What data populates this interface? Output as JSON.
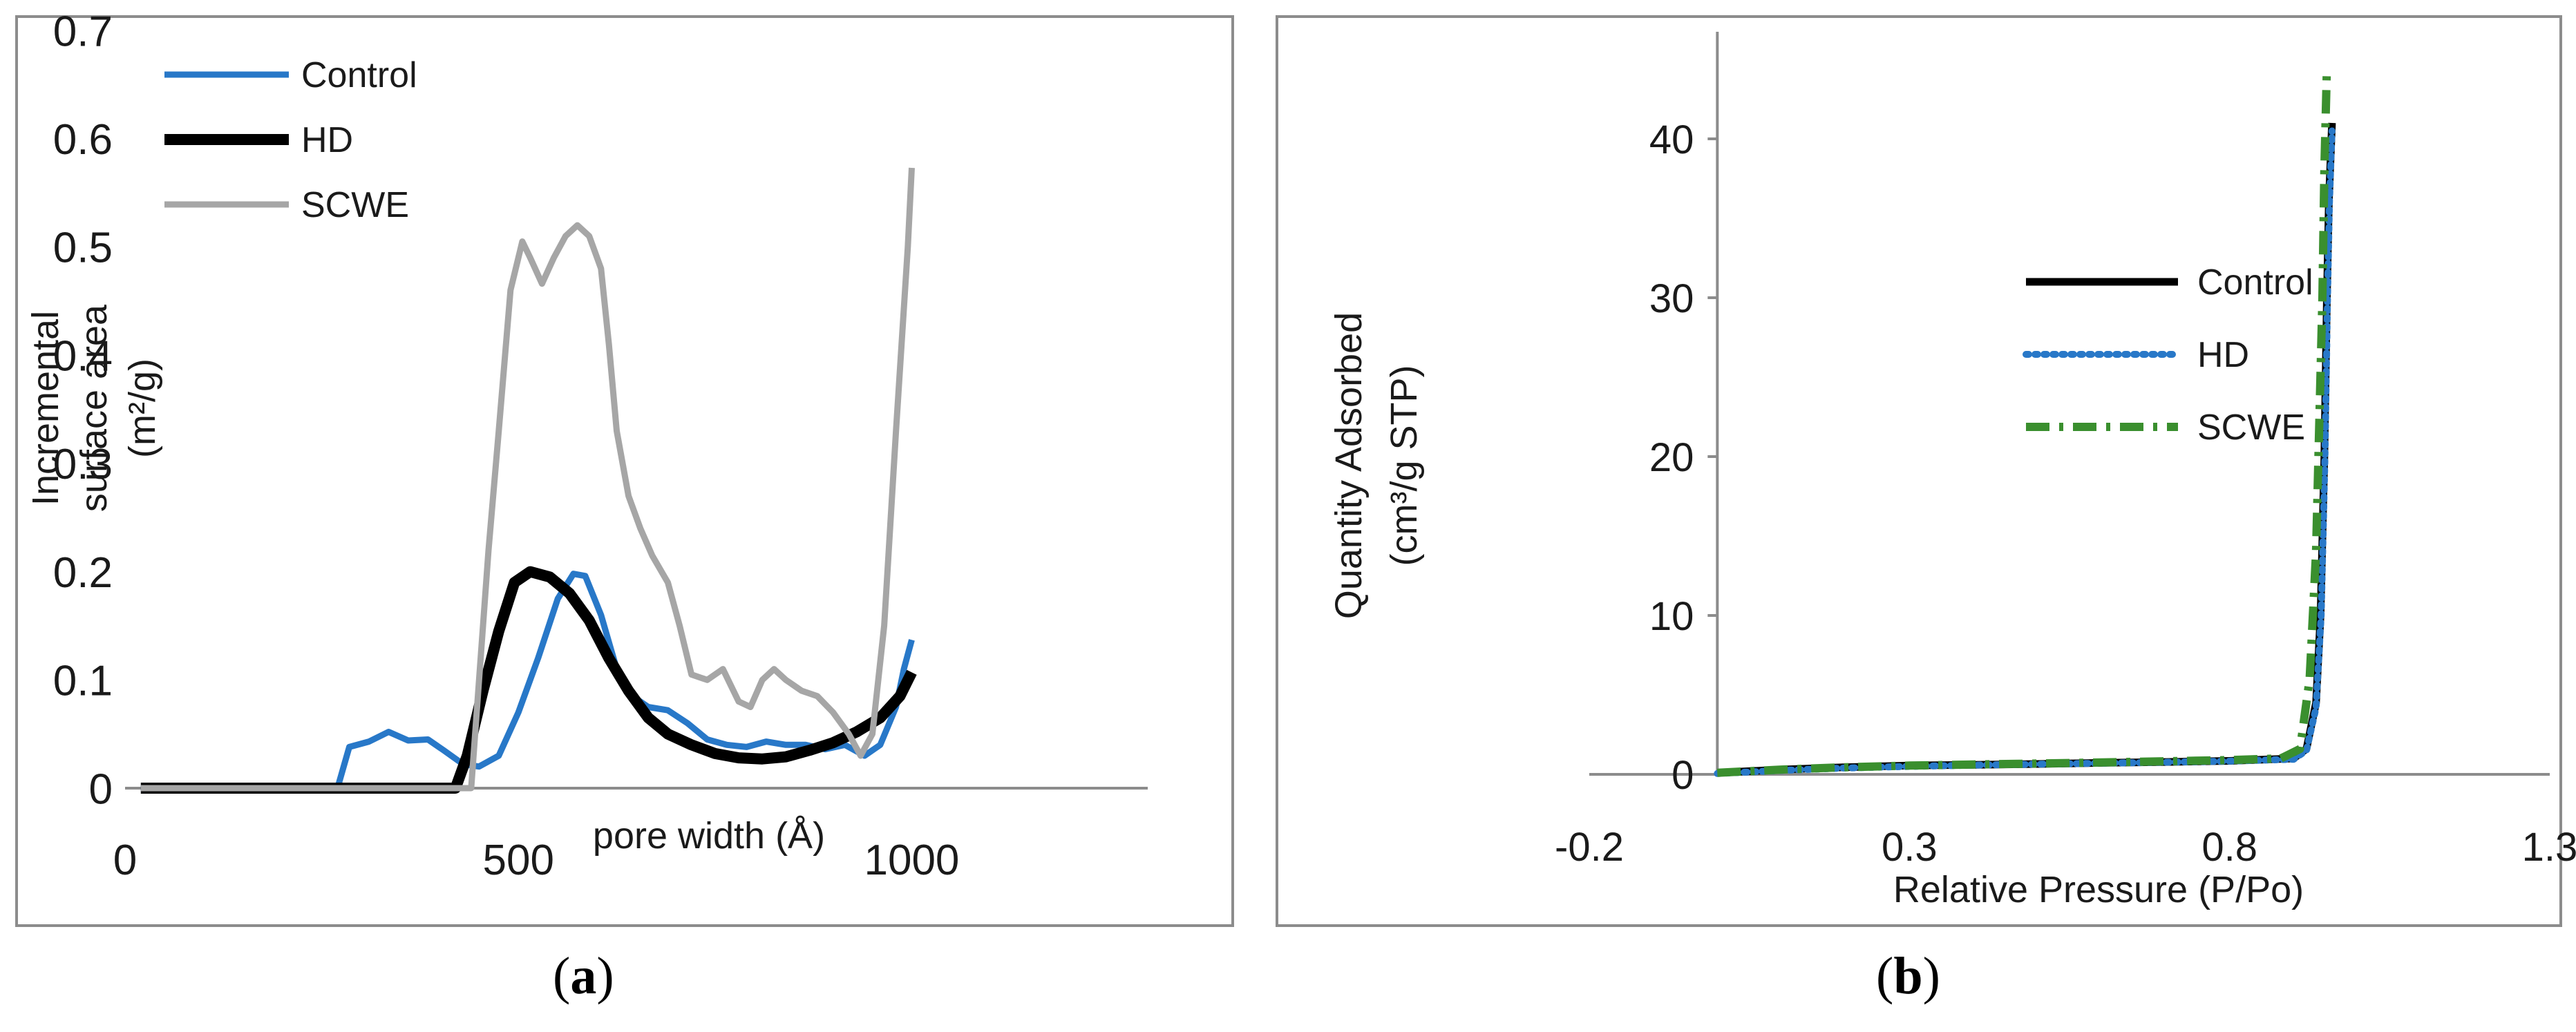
{
  "chart_data": [
    {
      "type": "line",
      "panel_label": "a",
      "title": "",
      "xlabel": "pore width (Å)",
      "ylabel_lines": [
        "Incremental",
        "surface area",
        "(m²/g)"
      ],
      "xlim": [
        0,
        1300
      ],
      "ylim": [
        0,
        0.7
      ],
      "xticks": [
        0,
        500,
        1000
      ],
      "yticks": [
        0,
        0.1,
        0.2,
        0.3,
        0.4,
        0.5,
        0.6,
        0.7
      ],
      "xtick_labels": [
        "0",
        "500",
        "1000"
      ],
      "ytick_labels": [
        "0",
        "0.1",
        "0.2",
        "0.3",
        "0.4",
        "0.5",
        "0.6",
        "0.7"
      ],
      "grid": false,
      "legend": "top-left",
      "series": [
        {
          "name": "Control",
          "color": "#2878c8",
          "style": "solid",
          "points": [
            [
              20,
              0
            ],
            [
              270,
              0
            ],
            [
              285,
              0.038
            ],
            [
              310,
              0.043
            ],
            [
              335,
              0.052
            ],
            [
              360,
              0.044
            ],
            [
              385,
              0.045
            ],
            [
              405,
              0.035
            ],
            [
              430,
              0.022
            ],
            [
              450,
              0.02
            ],
            [
              475,
              0.03
            ],
            [
              500,
              0.07
            ],
            [
              525,
              0.12
            ],
            [
              550,
              0.175
            ],
            [
              570,
              0.198
            ],
            [
              585,
              0.196
            ],
            [
              605,
              0.16
            ],
            [
              625,
              0.11
            ],
            [
              645,
              0.085
            ],
            [
              665,
              0.075
            ],
            [
              690,
              0.072
            ],
            [
              715,
              0.06
            ],
            [
              740,
              0.045
            ],
            [
              765,
              0.04
            ],
            [
              790,
              0.038
            ],
            [
              815,
              0.043
            ],
            [
              840,
              0.04
            ],
            [
              865,
              0.04
            ],
            [
              890,
              0.036
            ],
            [
              915,
              0.04
            ],
            [
              940,
              0.03
            ],
            [
              960,
              0.04
            ],
            [
              980,
              0.075
            ],
            [
              990,
              0.11
            ],
            [
              1000,
              0.137
            ]
          ]
        },
        {
          "name": "HD",
          "color": "#000000",
          "style": "solid",
          "points": [
            [
              20,
              0
            ],
            [
              420,
              0
            ],
            [
              435,
              0.03
            ],
            [
              455,
              0.09
            ],
            [
              475,
              0.145
            ],
            [
              495,
              0.19
            ],
            [
              515,
              0.2
            ],
            [
              540,
              0.195
            ],
            [
              565,
              0.18
            ],
            [
              590,
              0.155
            ],
            [
              615,
              0.12
            ],
            [
              640,
              0.09
            ],
            [
              665,
              0.065
            ],
            [
              690,
              0.05
            ],
            [
              720,
              0.04
            ],
            [
              750,
              0.032
            ],
            [
              780,
              0.028
            ],
            [
              810,
              0.027
            ],
            [
              840,
              0.029
            ],
            [
              870,
              0.035
            ],
            [
              900,
              0.042
            ],
            [
              930,
              0.052
            ],
            [
              960,
              0.065
            ],
            [
              985,
              0.085
            ],
            [
              1000,
              0.107
            ]
          ]
        },
        {
          "name": "SCWE",
          "color": "#a6a6a6",
          "style": "solid",
          "points": [
            [
              20,
              0
            ],
            [
              440,
              0
            ],
            [
              450,
              0.1
            ],
            [
              462,
              0.22
            ],
            [
              475,
              0.33
            ],
            [
              490,
              0.46
            ],
            [
              505,
              0.505
            ],
            [
              515,
              0.49
            ],
            [
              530,
              0.466
            ],
            [
              545,
              0.49
            ],
            [
              560,
              0.51
            ],
            [
              575,
              0.52
            ],
            [
              590,
              0.51
            ],
            [
              605,
              0.48
            ],
            [
              615,
              0.41
            ],
            [
              625,
              0.33
            ],
            [
              640,
              0.27
            ],
            [
              655,
              0.24
            ],
            [
              670,
              0.215
            ],
            [
              690,
              0.19
            ],
            [
              705,
              0.15
            ],
            [
              720,
              0.105
            ],
            [
              740,
              0.1
            ],
            [
              760,
              0.11
            ],
            [
              780,
              0.08
            ],
            [
              795,
              0.075
            ],
            [
              810,
              0.1
            ],
            [
              825,
              0.11
            ],
            [
              840,
              0.1
            ],
            [
              860,
              0.09
            ],
            [
              880,
              0.085
            ],
            [
              900,
              0.07
            ],
            [
              920,
              0.05
            ],
            [
              935,
              0.03
            ],
            [
              950,
              0.05
            ],
            [
              965,
              0.15
            ],
            [
              980,
              0.33
            ],
            [
              995,
              0.5
            ],
            [
              1000,
              0.573
            ]
          ]
        }
      ]
    },
    {
      "type": "line",
      "panel_label": "b",
      "title": "",
      "xlabel": "Relative Pressure (P/Po)",
      "ylabel_lines": [
        "Quantity Adsorbed",
        "(cm³/g STP)"
      ],
      "xlim": [
        -0.2,
        1.3
      ],
      "ylim": [
        0,
        45
      ],
      "xticks": [
        -0.2,
        0.3,
        0.8,
        1.3
      ],
      "yticks": [
        0,
        10,
        20,
        30,
        40
      ],
      "xtick_labels": [
        "-0.2",
        "0.3",
        "0.8",
        "1.3"
      ],
      "ytick_labels": [
        "0",
        "10",
        "20",
        "30",
        "40"
      ],
      "grid": false,
      "legend": "right",
      "series": [
        {
          "name": "Control",
          "color": "#000000",
          "style": "solid",
          "points": [
            [
              0.0,
              0.1
            ],
            [
              0.1,
              0.3
            ],
            [
              0.2,
              0.45
            ],
            [
              0.3,
              0.55
            ],
            [
              0.4,
              0.6
            ],
            [
              0.5,
              0.65
            ],
            [
              0.6,
              0.72
            ],
            [
              0.7,
              0.78
            ],
            [
              0.8,
              0.85
            ],
            [
              0.9,
              1.0
            ],
            [
              0.92,
              1.6
            ],
            [
              0.935,
              4.5
            ],
            [
              0.942,
              10
            ],
            [
              0.948,
              20
            ],
            [
              0.952,
              30
            ],
            [
              0.955,
              36
            ],
            [
              0.96,
              41
            ]
          ]
        },
        {
          "name": "HD",
          "color": "#2878c8",
          "style": "dotted",
          "points": [
            [
              0.0,
              0.05
            ],
            [
              0.1,
              0.25
            ],
            [
              0.2,
              0.4
            ],
            [
              0.3,
              0.5
            ],
            [
              0.4,
              0.58
            ],
            [
              0.5,
              0.64
            ],
            [
              0.6,
              0.7
            ],
            [
              0.7,
              0.76
            ],
            [
              0.8,
              0.83
            ],
            [
              0.9,
              0.95
            ],
            [
              0.92,
              1.5
            ],
            [
              0.935,
              4.2
            ],
            [
              0.943,
              10
            ],
            [
              0.949,
              20
            ],
            [
              0.953,
              30
            ],
            [
              0.956,
              36
            ],
            [
              0.96,
              40.5
            ]
          ]
        },
        {
          "name": "SCWE",
          "color": "#3a8f2e",
          "style": "dashdot",
          "points": [
            [
              0.0,
              0.1
            ],
            [
              0.1,
              0.3
            ],
            [
              0.2,
              0.45
            ],
            [
              0.3,
              0.55
            ],
            [
              0.4,
              0.62
            ],
            [
              0.5,
              0.68
            ],
            [
              0.6,
              0.75
            ],
            [
              0.7,
              0.82
            ],
            [
              0.8,
              0.9
            ],
            [
              0.88,
              1.0
            ],
            [
              0.91,
              1.6
            ],
            [
              0.925,
              6
            ],
            [
              0.935,
              14
            ],
            [
              0.94,
              22
            ],
            [
              0.945,
              30
            ],
            [
              0.948,
              38
            ],
            [
              0.952,
              44.5
            ]
          ]
        }
      ]
    }
  ]
}
